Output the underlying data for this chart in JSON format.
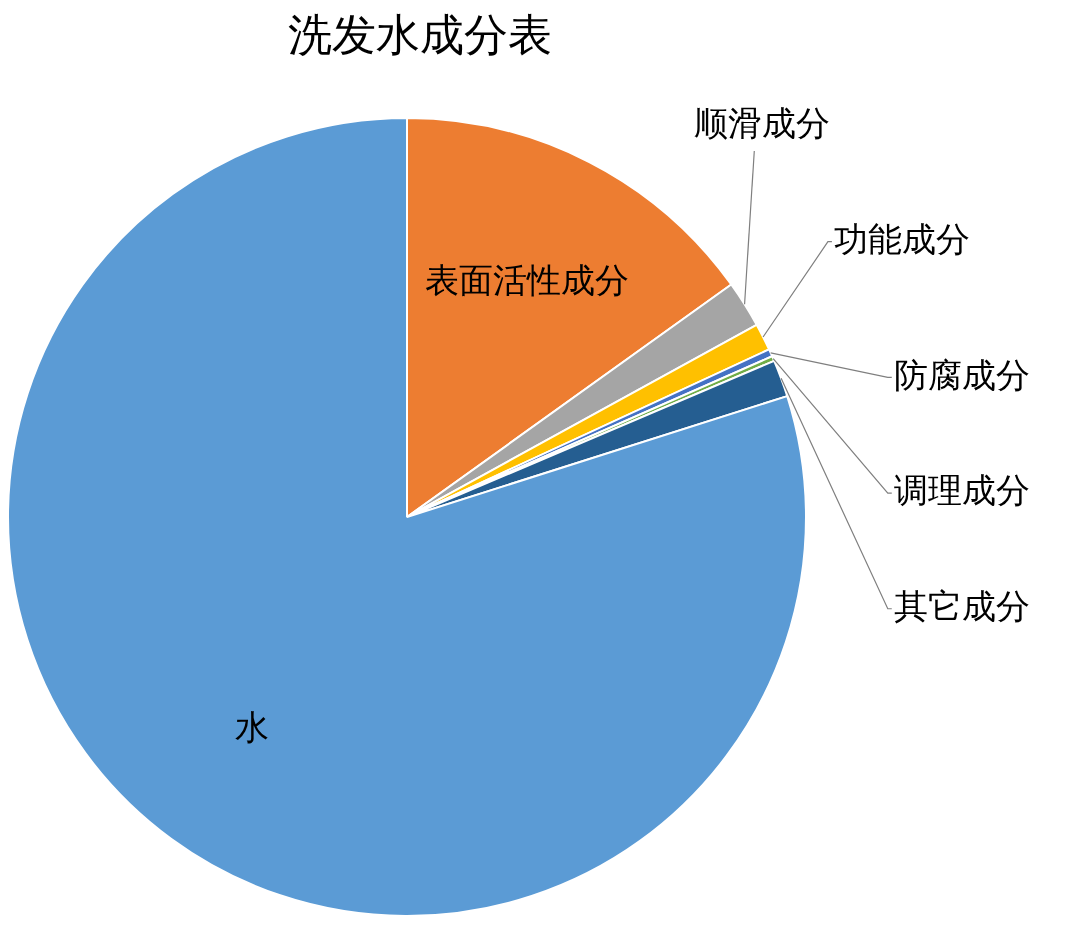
{
  "chart_data": {
    "type": "pie",
    "title": "洗发水成分表",
    "categories": [
      "表面活性成分",
      "顺滑成分",
      "功能成分",
      "防腐成分",
      "调理成分",
      "其它成分",
      "水"
    ],
    "values": [
      15.1,
      1.9,
      1.1,
      0.3,
      0.2,
      1.5,
      79.9
    ],
    "colors": [
      "#ed7d31",
      "#a5a5a5",
      "#ffc000",
      "#4472c4",
      "#70ad47",
      "#255e91",
      "#5b9bd5"
    ],
    "legend": false
  }
}
